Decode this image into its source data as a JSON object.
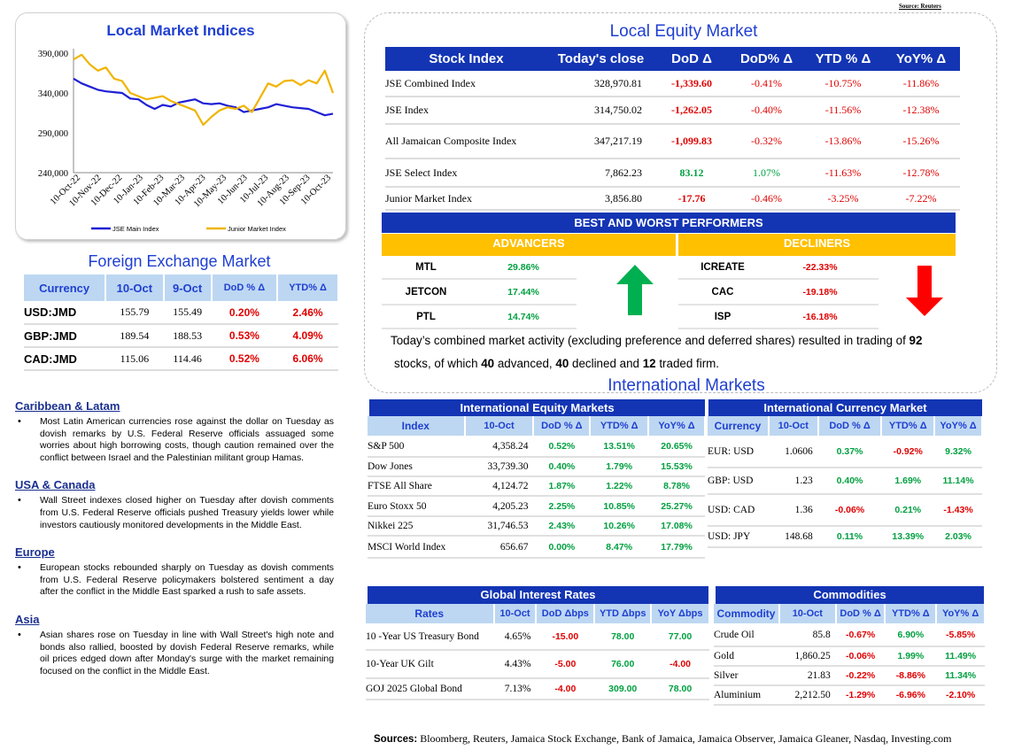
{
  "source_top": "Source: Reuters",
  "chart": {
    "title": "Local Market Indices"
  },
  "chart_data": {
    "type": "line",
    "title": "Local Market Indices",
    "ylim": [
      240000,
      390000
    ],
    "yticks": [
      "390,000",
      "340,000",
      "290,000",
      "240,000"
    ],
    "xticks": [
      "10-Oct-22",
      "10-Nov-22",
      "10-Dec-22",
      "10-Jan-23",
      "10-Feb-23",
      "10-Mar-23",
      "10-Apr-23",
      "10-May-23",
      "10-Jun-23",
      "10-Jul-23",
      "10-Aug-23",
      "10-Sep-23",
      "10-Oct-23"
    ],
    "series": [
      {
        "name": "JSE Main Index",
        "color": "#1f1fd6",
        "values": [
          358000,
          352000,
          348000,
          344000,
          342000,
          341000,
          340000,
          333000,
          332000,
          325000,
          320000,
          325000,
          323000,
          328000,
          330000,
          332000,
          327000,
          326000,
          327000,
          324000,
          322000,
          316000,
          318000,
          320000,
          322000,
          326000,
          324000,
          322000,
          321000,
          320000,
          316000,
          312000,
          314000
        ]
      },
      {
        "name": "Junior Market Index",
        "color": "#f0b400",
        "values": [
          382000,
          388000,
          376000,
          368000,
          372000,
          358000,
          355000,
          340000,
          336000,
          332000,
          334000,
          336000,
          330000,
          326000,
          322000,
          318000,
          300000,
          310000,
          318000,
          322000,
          320000,
          324000,
          316000,
          334000,
          352000,
          348000,
          355000,
          356000,
          350000,
          356000,
          352000,
          368000,
          340000
        ]
      }
    ],
    "legend": "bottom"
  },
  "equity": {
    "title": "Local Equity Market",
    "headers": [
      "Stock Index",
      "Today's close",
      "DoD  Δ",
      "DoD% Δ",
      "YTD % Δ",
      "YoY% Δ"
    ],
    "rows": [
      [
        "JSE Combined Index",
        "328,970.81",
        "-1,339.60",
        "-0.41%",
        "-10.75%",
        "-11.86%"
      ],
      [
        "JSE Index",
        "314,750.02",
        "-1,262.05",
        "-0.40%",
        "-11.56%",
        "-12.38%"
      ],
      [
        "All Jamaican Composite Index",
        "347,217.19",
        "-1,099.83",
        "-0.32%",
        "-13.86%",
        "-15.26%"
      ],
      [
        "JSE Select Index",
        "7,862.23",
        "83.12",
        "1.07%",
        "-11.63%",
        "-12.78%"
      ],
      [
        "Junior Market Index",
        "3,856.80",
        "-17.76",
        "-0.46%",
        "-3.25%",
        "-7.22%"
      ]
    ]
  },
  "performers": {
    "title": "BEST AND WORST PERFORMERS",
    "advancers_label": "ADVANCERS",
    "decliners_label": "DECLINERS",
    "advancers": [
      [
        "MTL",
        "29.86%"
      ],
      [
        "JETCON",
        "17.44%"
      ],
      [
        "PTL",
        "14.74%"
      ]
    ],
    "decliners": [
      [
        "ICREATE",
        "-22.33%"
      ],
      [
        "CAC",
        "-19.18%"
      ],
      [
        "ISP",
        "-16.18%"
      ]
    ]
  },
  "summary": {
    "p1": "Today’s combined market activity (excluding preference and deferred shares) resulted in trading of ",
    "n1": "92",
    "p2": "stocks, of which ",
    "n2": "40",
    "p3": " advanced, ",
    "n3": "40",
    "p4": " declined and ",
    "n4": "12",
    "p5": " traded firm."
  },
  "fx": {
    "title": "Foreign Exchange Market",
    "headers": [
      "Currency",
      "10-Oct",
      "9-Oct",
      "DoD % Δ",
      "YTD% Δ"
    ],
    "rows": [
      [
        "USD:JMD",
        "155.79",
        "155.49",
        "0.20%",
        "2.46%"
      ],
      [
        "GBP:JMD",
        "189.54",
        "188.53",
        "0.53%",
        "4.09%"
      ],
      [
        "CAD:JMD",
        "115.06",
        "114.46",
        "0.52%",
        "6.06%"
      ]
    ]
  },
  "news": [
    {
      "heading": "Caribbean & Latam",
      "text": "Most Latin American currencies rose against the dollar on Tuesday as dovish remarks by U.S. Federal Reserve officials assuaged some worries about high borrowing costs, though caution remained over the conflict between Israel and the Palestinian militant group Hamas."
    },
    {
      "heading": "USA & Canada",
      "text": "Wall Street indexes closed higher on Tuesday after dovish comments from U.S. Federal Reserve officials pushed Treasury yields lower while investors cautiously monitored developments in the Middle East."
    },
    {
      "heading": "Europe",
      "text": "European stocks rebounded sharply on Tuesday as dovish comments from U.S. Federal Reserve policymakers bolstered sentiment a day after the conflict in the Middle East sparked a rush to safe assets."
    },
    {
      "heading": "Asia",
      "text": "Asian shares rose on Tuesday in line with Wall Street's high note and bonds also rallied, boosted by dovish Federal Reserve remarks, while oil prices edged down after Monday's surge with the market remaining focused on the conflict in the Middle East."
    }
  ],
  "intl": {
    "title": "International Markets",
    "equity_title": "International Equity Markets",
    "equity_headers": [
      "Index",
      "10-Oct",
      "DoD % Δ",
      "YTD% Δ",
      "YoY% Δ"
    ],
    "equity_rows": [
      [
        "S&P 500",
        "4,358.24",
        "0.52%",
        "13.51%",
        "20.65%"
      ],
      [
        "Dow Jones",
        "33,739.30",
        "0.40%",
        "1.79%",
        "15.53%"
      ],
      [
        "FTSE All Share",
        "4,124.72",
        "1.87%",
        "1.22%",
        "8.78%"
      ],
      [
        "Euro Stoxx 50",
        "4,205.23",
        "2.25%",
        "10.85%",
        "25.27%"
      ],
      [
        "Nikkei 225",
        "31,746.53",
        "2.43%",
        "10.26%",
        "17.08%"
      ],
      [
        "MSCI World Index",
        "656.67",
        "0.00%",
        "8.47%",
        "17.79%"
      ]
    ],
    "currency_title": "International Currency Market",
    "currency_headers": [
      "Currency",
      "10-Oct",
      "DoD % Δ",
      "YTD% Δ",
      "YoY% Δ"
    ],
    "currency_rows": [
      [
        "EUR: USD",
        "1.0606",
        "0.37%",
        "-0.92%",
        "9.32%"
      ],
      [
        "GBP: USD",
        "1.23",
        "0.40%",
        "1.69%",
        "11.14%"
      ],
      [
        "USD: CAD",
        "1.36",
        "-0.06%",
        "0.21%",
        "-1.43%"
      ],
      [
        "USD: JPY",
        "148.68",
        "0.11%",
        "13.39%",
        "2.03%"
      ]
    ],
    "rates_title": "Global Interest Rates",
    "rates_headers": [
      "Rates",
      "10-Oct",
      "DoD Δbps",
      "YTD Δbps",
      "YoY Δbps"
    ],
    "rates_rows": [
      [
        "10 -Year US Treasury Bond",
        "4.65%",
        "-15.00",
        "78.00",
        "77.00"
      ],
      [
        "10-Year UK Gilt",
        "4.43%",
        "-5.00",
        "76.00",
        "-4.00"
      ],
      [
        "GOJ 2025 Global Bond",
        "7.13%",
        "-4.00",
        "309.00",
        "78.00"
      ]
    ],
    "commodities_title": "Commodities",
    "commodities_headers": [
      "Commodity",
      "10-Oct",
      "DoD % Δ",
      "YTD% Δ",
      "YoY% Δ"
    ],
    "commodities_rows": [
      [
        "Crude Oil",
        "85.8",
        "-0.67%",
        "6.90%",
        "-5.85%"
      ],
      [
        "Gold",
        "1,860.25",
        "-0.06%",
        "1.99%",
        "11.49%"
      ],
      [
        "Silver",
        "21.83",
        "-0.22%",
        "-8.86%",
        "11.34%"
      ],
      [
        "Aluminium",
        "2,212.50",
        "-1.29%",
        "-6.96%",
        "-2.10%"
      ]
    ]
  },
  "footer": {
    "label": "Sources:",
    "text": " Bloomberg, Reuters, Jamaica Stock Exchange, Bank of Jamaica, Jamaica Observer, Jamaica Gleaner, Nasdaq, Investing.com"
  }
}
